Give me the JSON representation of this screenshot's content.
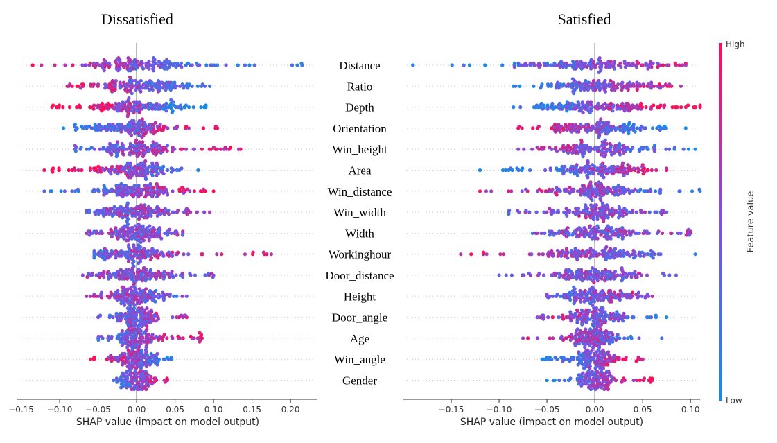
{
  "chart_data": [
    {
      "type": "scatter",
      "title": "Dissatisfied",
      "xlabel": "SHAP value (impact on model output)",
      "xlim": [
        -0.155,
        0.235
      ],
      "xticks": [
        "-0.15",
        "-0.10",
        "-0.05",
        "0.00",
        "0.05",
        "0.10",
        "0.15",
        "0.20"
      ],
      "features": [
        {
          "name": "Distance",
          "min": -0.135,
          "max": 0.215,
          "core": 0.07,
          "trend": -0.6
        },
        {
          "name": "Ratio",
          "min": -0.09,
          "max": 0.095,
          "core": 0.06,
          "trend": -0.5
        },
        {
          "name": "Depth",
          "min": -0.11,
          "max": 0.09,
          "core": 0.055,
          "trend": -0.9
        },
        {
          "name": "Orientation",
          "min": -0.095,
          "max": 0.105,
          "core": 0.05,
          "trend": 0.7
        },
        {
          "name": "Win_height",
          "min": -0.08,
          "max": 0.135,
          "core": 0.05,
          "trend": 0.5
        },
        {
          "name": "Area",
          "min": -0.12,
          "max": 0.08,
          "core": 0.045,
          "trend": -0.7
        },
        {
          "name": "Win_distance",
          "min": -0.12,
          "max": 0.1,
          "core": 0.045,
          "trend": 0.5
        },
        {
          "name": "Win_width",
          "min": -0.065,
          "max": 0.095,
          "core": 0.045,
          "trend": 0.1
        },
        {
          "name": "Width",
          "min": -0.065,
          "max": 0.06,
          "core": 0.04,
          "trend": 0.0
        },
        {
          "name": "Workinghour",
          "min": -0.055,
          "max": 0.175,
          "core": 0.05,
          "trend": 0.5
        },
        {
          "name": "Door_distance",
          "min": -0.07,
          "max": 0.1,
          "core": 0.045,
          "trend": 0.0
        },
        {
          "name": "Height",
          "min": -0.065,
          "max": 0.065,
          "core": 0.035,
          "trend": -0.2
        },
        {
          "name": "Door_angle",
          "min": -0.05,
          "max": 0.065,
          "core": 0.03,
          "trend": 0.3
        },
        {
          "name": "Age",
          "min": -0.05,
          "max": 0.085,
          "core": 0.025,
          "trend": 0.4
        },
        {
          "name": "Win_angle",
          "min": -0.06,
          "max": 0.045,
          "core": 0.025,
          "trend": -0.6
        },
        {
          "name": "Gender",
          "min": -0.03,
          "max": 0.04,
          "core": 0.02,
          "trend": 0.5
        }
      ]
    },
    {
      "type": "scatter",
      "title": "Satisfied",
      "xlabel": "SHAP value (impact on model output)",
      "xlim": [
        -0.2,
        0.11
      ],
      "xticks": [
        "-0.15",
        "-0.10",
        "-0.05",
        "0.00",
        "0.05",
        "0.10"
      ],
      "features": [
        {
          "name": "Distance",
          "min": -0.19,
          "max": 0.095,
          "core": 0.07,
          "trend": 0.6
        },
        {
          "name": "Ratio",
          "min": -0.085,
          "max": 0.09,
          "core": 0.06,
          "trend": 0.5
        },
        {
          "name": "Depth",
          "min": -0.085,
          "max": 0.11,
          "core": 0.055,
          "trend": 0.8
        },
        {
          "name": "Orientation",
          "min": -0.08,
          "max": 0.095,
          "core": 0.05,
          "trend": -0.7
        },
        {
          "name": "Win_height",
          "min": -0.08,
          "max": 0.105,
          "core": 0.05,
          "trend": -0.4
        },
        {
          "name": "Area",
          "min": -0.12,
          "max": 0.075,
          "core": 0.045,
          "trend": 0.7
        },
        {
          "name": "Win_distance",
          "min": -0.12,
          "max": 0.11,
          "core": 0.045,
          "trend": -0.4
        },
        {
          "name": "Win_width",
          "min": -0.09,
          "max": 0.075,
          "core": 0.045,
          "trend": 0.0
        },
        {
          "name": "Width",
          "min": -0.065,
          "max": 0.1,
          "core": 0.04,
          "trend": 0.1
        },
        {
          "name": "Workinghour",
          "min": -0.14,
          "max": 0.105,
          "core": 0.05,
          "trend": -0.5
        },
        {
          "name": "Door_distance",
          "min": -0.1,
          "max": 0.085,
          "core": 0.045,
          "trend": 0.0
        },
        {
          "name": "Height",
          "min": -0.05,
          "max": 0.06,
          "core": 0.035,
          "trend": 0.2
        },
        {
          "name": "Door_angle",
          "min": -0.06,
          "max": 0.075,
          "core": 0.03,
          "trend": -0.3
        },
        {
          "name": "Age",
          "min": -0.075,
          "max": 0.07,
          "core": 0.025,
          "trend": -0.4
        },
        {
          "name": "Win_angle",
          "min": -0.055,
          "max": 0.05,
          "core": 0.025,
          "trend": 0.6
        },
        {
          "name": "Gender",
          "min": -0.05,
          "max": 0.06,
          "core": 0.02,
          "trend": 0.6
        }
      ]
    }
  ],
  "colorbar": {
    "label": "Feature value",
    "high": "High",
    "low": "Low",
    "color_low": "#1E88E5",
    "color_high": "#FF0D57"
  },
  "colors": {
    "axis": "#333333",
    "zero_line": "#999999",
    "row_guide": "#cccccc"
  }
}
